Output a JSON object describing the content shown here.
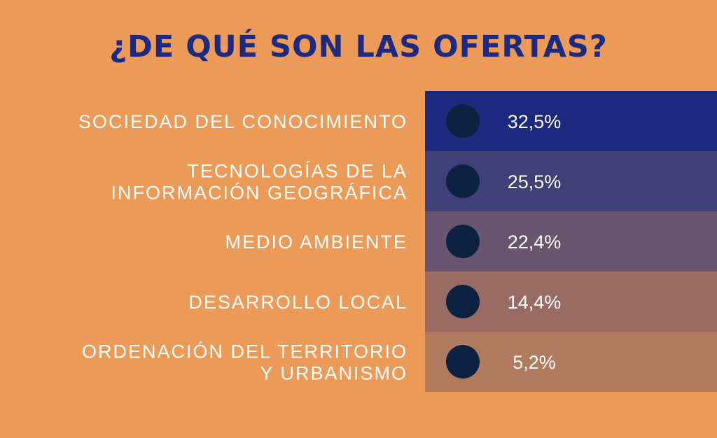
{
  "chart_data": {
    "type": "table",
    "title": "¿DE QUÉ SON LAS OFERTAS?",
    "categories": [
      [
        "SOCIEDAD DEL CONOCIMIENTO"
      ],
      [
        "TECNOLOGÍAS DE LA",
        "INFORMACIÓN GEOGRÁFICA"
      ],
      [
        "MEDIO AMBIENTE"
      ],
      [
        "DESARROLLO LOCAL"
      ],
      [
        "ORDENACIÓN DEL TERRITORIO",
        "Y URBANISMO"
      ]
    ],
    "values": [
      32.5,
      25.5,
      22.4,
      14.4,
      5.2
    ],
    "value_labels": [
      "32,5%",
      "25,5%",
      "22,4%",
      "14,4%",
      "5,2%"
    ],
    "unit": "%",
    "colors": {
      "background": "#EC9A58",
      "title": "#1B2A82",
      "rows": [
        "#1B2A7F",
        "#3F4077",
        "#69566E",
        "#986B65",
        "#B07B5E"
      ],
      "markers": "#0C2240",
      "labels": "#FFFFFF",
      "last_value_label": "#B7C6E6"
    }
  }
}
